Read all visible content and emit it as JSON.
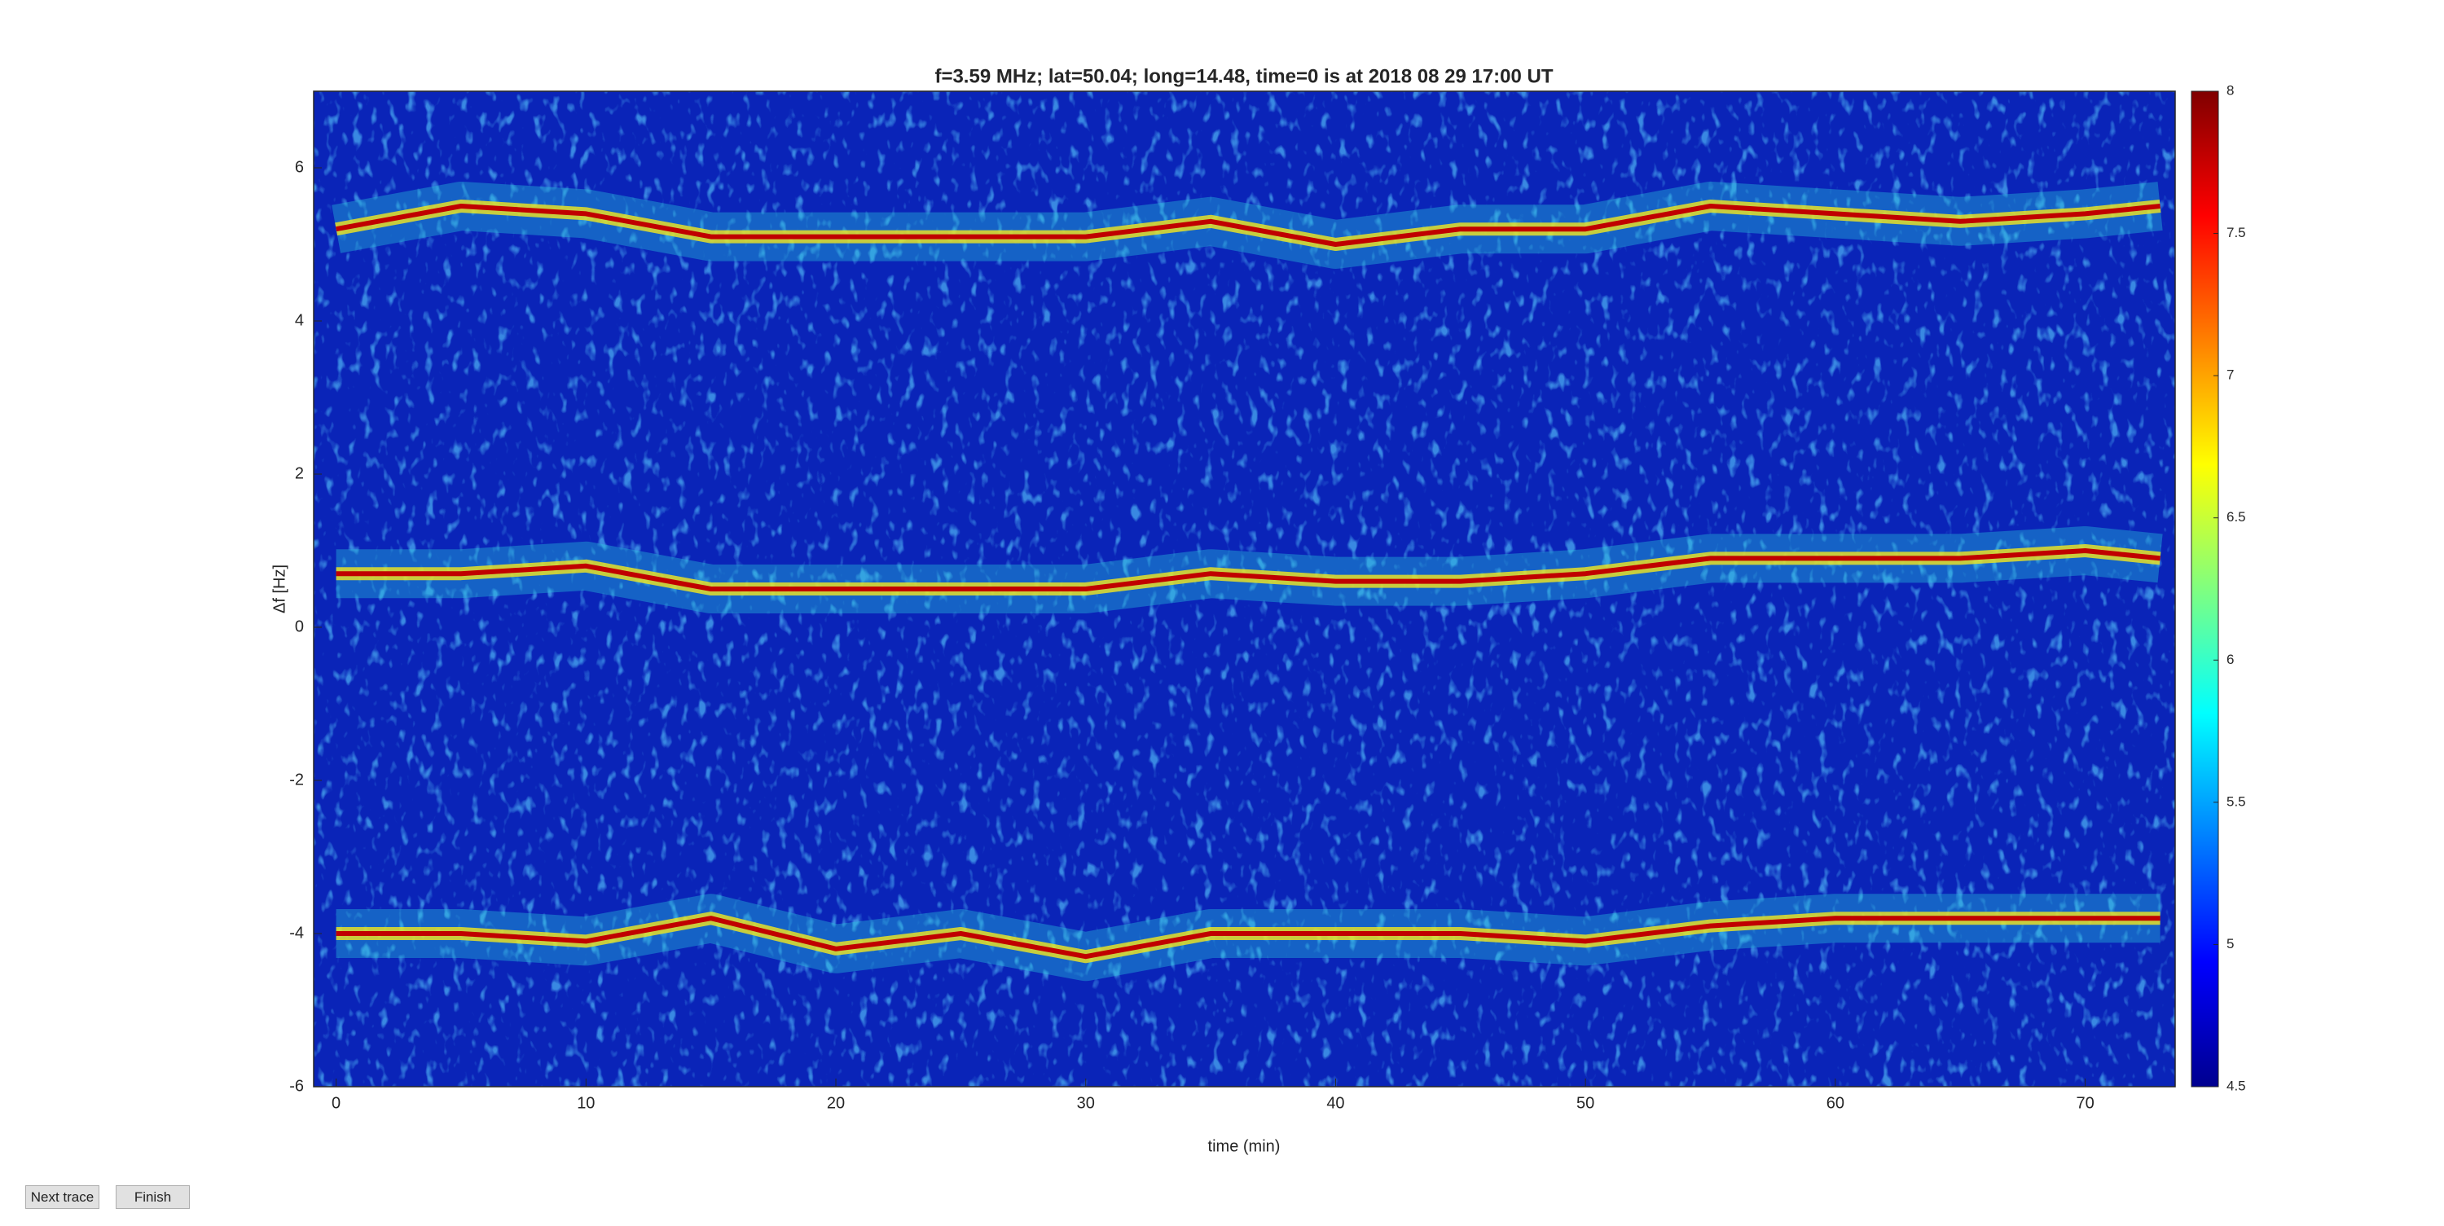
{
  "chart_data": {
    "type": "spectrogram",
    "title": "f=3.59 MHz;  lat=50.04; long=14.48, time=0 is at 2018 08 29 17:00 UT",
    "x_label": "time (min)",
    "y_label": "Δf [Hz]",
    "x": [
      0,
      5,
      10,
      15,
      20,
      25,
      30,
      35,
      40,
      45,
      50,
      55,
      60,
      65,
      70,
      73
    ],
    "series": [
      {
        "color": "#c00000",
        "values": [
          5.2,
          5.5,
          5.4,
          5.1,
          5.1,
          5.1,
          5.1,
          5.3,
          5.0,
          5.2,
          5.2,
          5.5,
          5.4,
          5.3,
          5.4,
          5.5
        ]
      },
      {
        "color": "#c00000",
        "values": [
          0.7,
          0.7,
          0.8,
          0.5,
          0.5,
          0.5,
          0.5,
          0.7,
          0.6,
          0.6,
          0.7,
          0.9,
          0.9,
          0.9,
          1.0,
          0.9
        ]
      },
      {
        "color": "#c00000",
        "values": [
          -4.0,
          -4.0,
          -4.1,
          -3.8,
          -4.2,
          -4.0,
          -4.3,
          -4.0,
          -4.0,
          -4.0,
          -4.1,
          -3.9,
          -3.8,
          -3.8,
          -3.8,
          -3.8
        ]
      }
    ],
    "xlim": [
      -0.9,
      73.6
    ],
    "xticks": [
      0,
      10,
      20,
      30,
      40,
      50,
      60,
      70
    ],
    "ylim": [
      -6,
      7
    ],
    "yticks": [
      -6,
      -4,
      -2,
      0,
      2,
      4,
      6
    ],
    "clim": [
      4.5,
      8
    ],
    "cticks": [
      4.5,
      5,
      5.5,
      6,
      6.5,
      7,
      7.5,
      8
    ]
  },
  "buttons": [
    "Next trace",
    "Finish"
  ]
}
